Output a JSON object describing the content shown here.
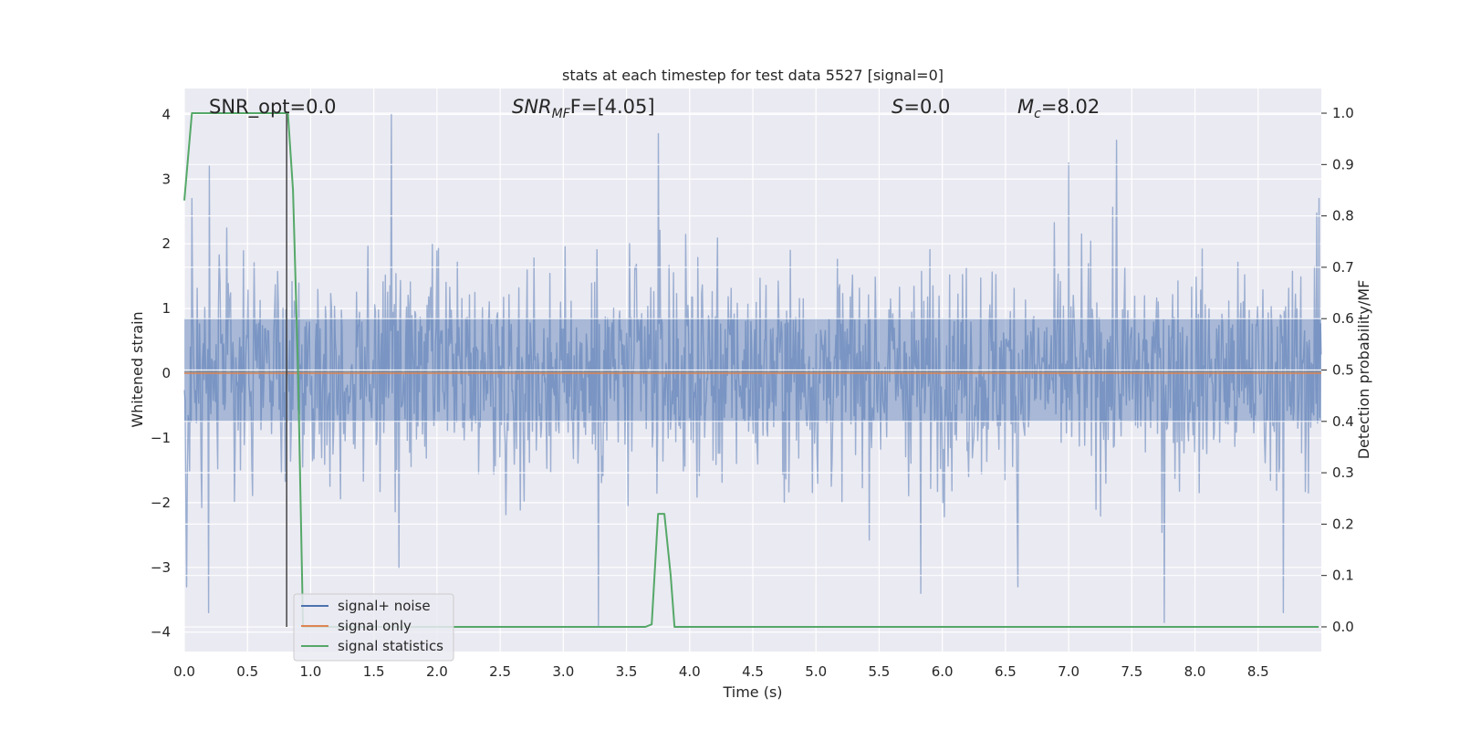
{
  "chart_data": {
    "type": "line",
    "title": "stats at each timestep for test data 5527 [signal=0]",
    "xlabel": "Time (s)",
    "ylabel": "Whitened strain",
    "y2label": "Detection probability/MF",
    "xlim": [
      0,
      9.0
    ],
    "ylim": [
      -4.3,
      4.4
    ],
    "y2lim": [
      -0.048,
      1.048
    ],
    "x_ticks": [
      "0.0",
      "0.5",
      "1.0",
      "1.5",
      "2.0",
      "2.5",
      "3.0",
      "3.5",
      "4.0",
      "4.5",
      "5.0",
      "5.5",
      "6.0",
      "6.5",
      "7.0",
      "7.5",
      "8.0",
      "8.5"
    ],
    "y_ticks": [
      "4",
      "3",
      "2",
      "1",
      "0",
      "−1",
      "−2",
      "−3",
      "−4"
    ],
    "y2_ticks": [
      "1.0",
      "0.9",
      "0.8",
      "0.7",
      "0.6",
      "0.5",
      "0.4",
      "0.3",
      "0.2",
      "0.1",
      "0.0"
    ],
    "grid": true,
    "legend_position": "lower-left",
    "annotations": [
      {
        "id": "snr-opt",
        "text": "SNR_opt=0.0"
      },
      {
        "id": "snr-mf",
        "text": "SNR",
        "sub": "MF",
        "tail": "F=[4.05]"
      },
      {
        "id": "s",
        "text": "S",
        "tail": "=0.0"
      },
      {
        "id": "mc",
        "text": "M",
        "sub": "c",
        "tail": "=8.02"
      }
    ],
    "vline_x": 0.81,
    "series": [
      {
        "name": "signal+ noise",
        "color": "#4c72b0",
        "kind": "noise",
        "description": "dense whitened strain noise, roughly within ±3, peaks to about 4.0 near t=1.64 and dips to about -3.9 near t=3.28 and t=7.76",
        "peaks": [
          [
            0.06,
            2.7
          ],
          [
            0.2,
            3.2
          ],
          [
            1.64,
            4.0
          ],
          [
            3.75,
            3.7
          ],
          [
            7.0,
            3.25
          ],
          [
            7.38,
            3.6
          ],
          [
            8.98,
            2.7
          ]
        ],
        "dips": [
          [
            0.02,
            -3.3
          ],
          [
            0.19,
            -3.7
          ],
          [
            1.7,
            -3.0
          ],
          [
            3.28,
            -3.9
          ],
          [
            5.83,
            -3.4
          ],
          [
            6.6,
            -3.3
          ],
          [
            7.76,
            -3.85
          ],
          [
            8.7,
            -3.7
          ]
        ]
      },
      {
        "name": "signal only",
        "color": "#dd8452",
        "x": [
          0,
          9.0
        ],
        "y": [
          0,
          0
        ]
      },
      {
        "name": "signal statistics",
        "color": "#55a868",
        "axis": "right",
        "x": [
          0.0,
          0.06,
          0.1,
          0.2,
          0.4,
          0.6,
          0.8,
          0.82,
          0.86,
          0.9,
          0.94,
          1.0,
          1.5,
          2.0,
          2.5,
          3.0,
          3.5,
          3.65,
          3.7,
          3.75,
          3.8,
          3.85,
          3.88,
          4.0,
          5.0,
          6.0,
          7.0,
          8.0,
          8.98
        ],
        "y": [
          0.83,
          1.0,
          1.0,
          1.0,
          1.0,
          1.0,
          1.0,
          1.0,
          0.85,
          0.5,
          0.0,
          0.0,
          0.0,
          0.0,
          0.0,
          0.0,
          0.0,
          0.0,
          0.005,
          0.22,
          0.22,
          0.1,
          0.0,
          0.0,
          0.0,
          0.0,
          0.0,
          0.0,
          0.0
        ]
      }
    ]
  }
}
